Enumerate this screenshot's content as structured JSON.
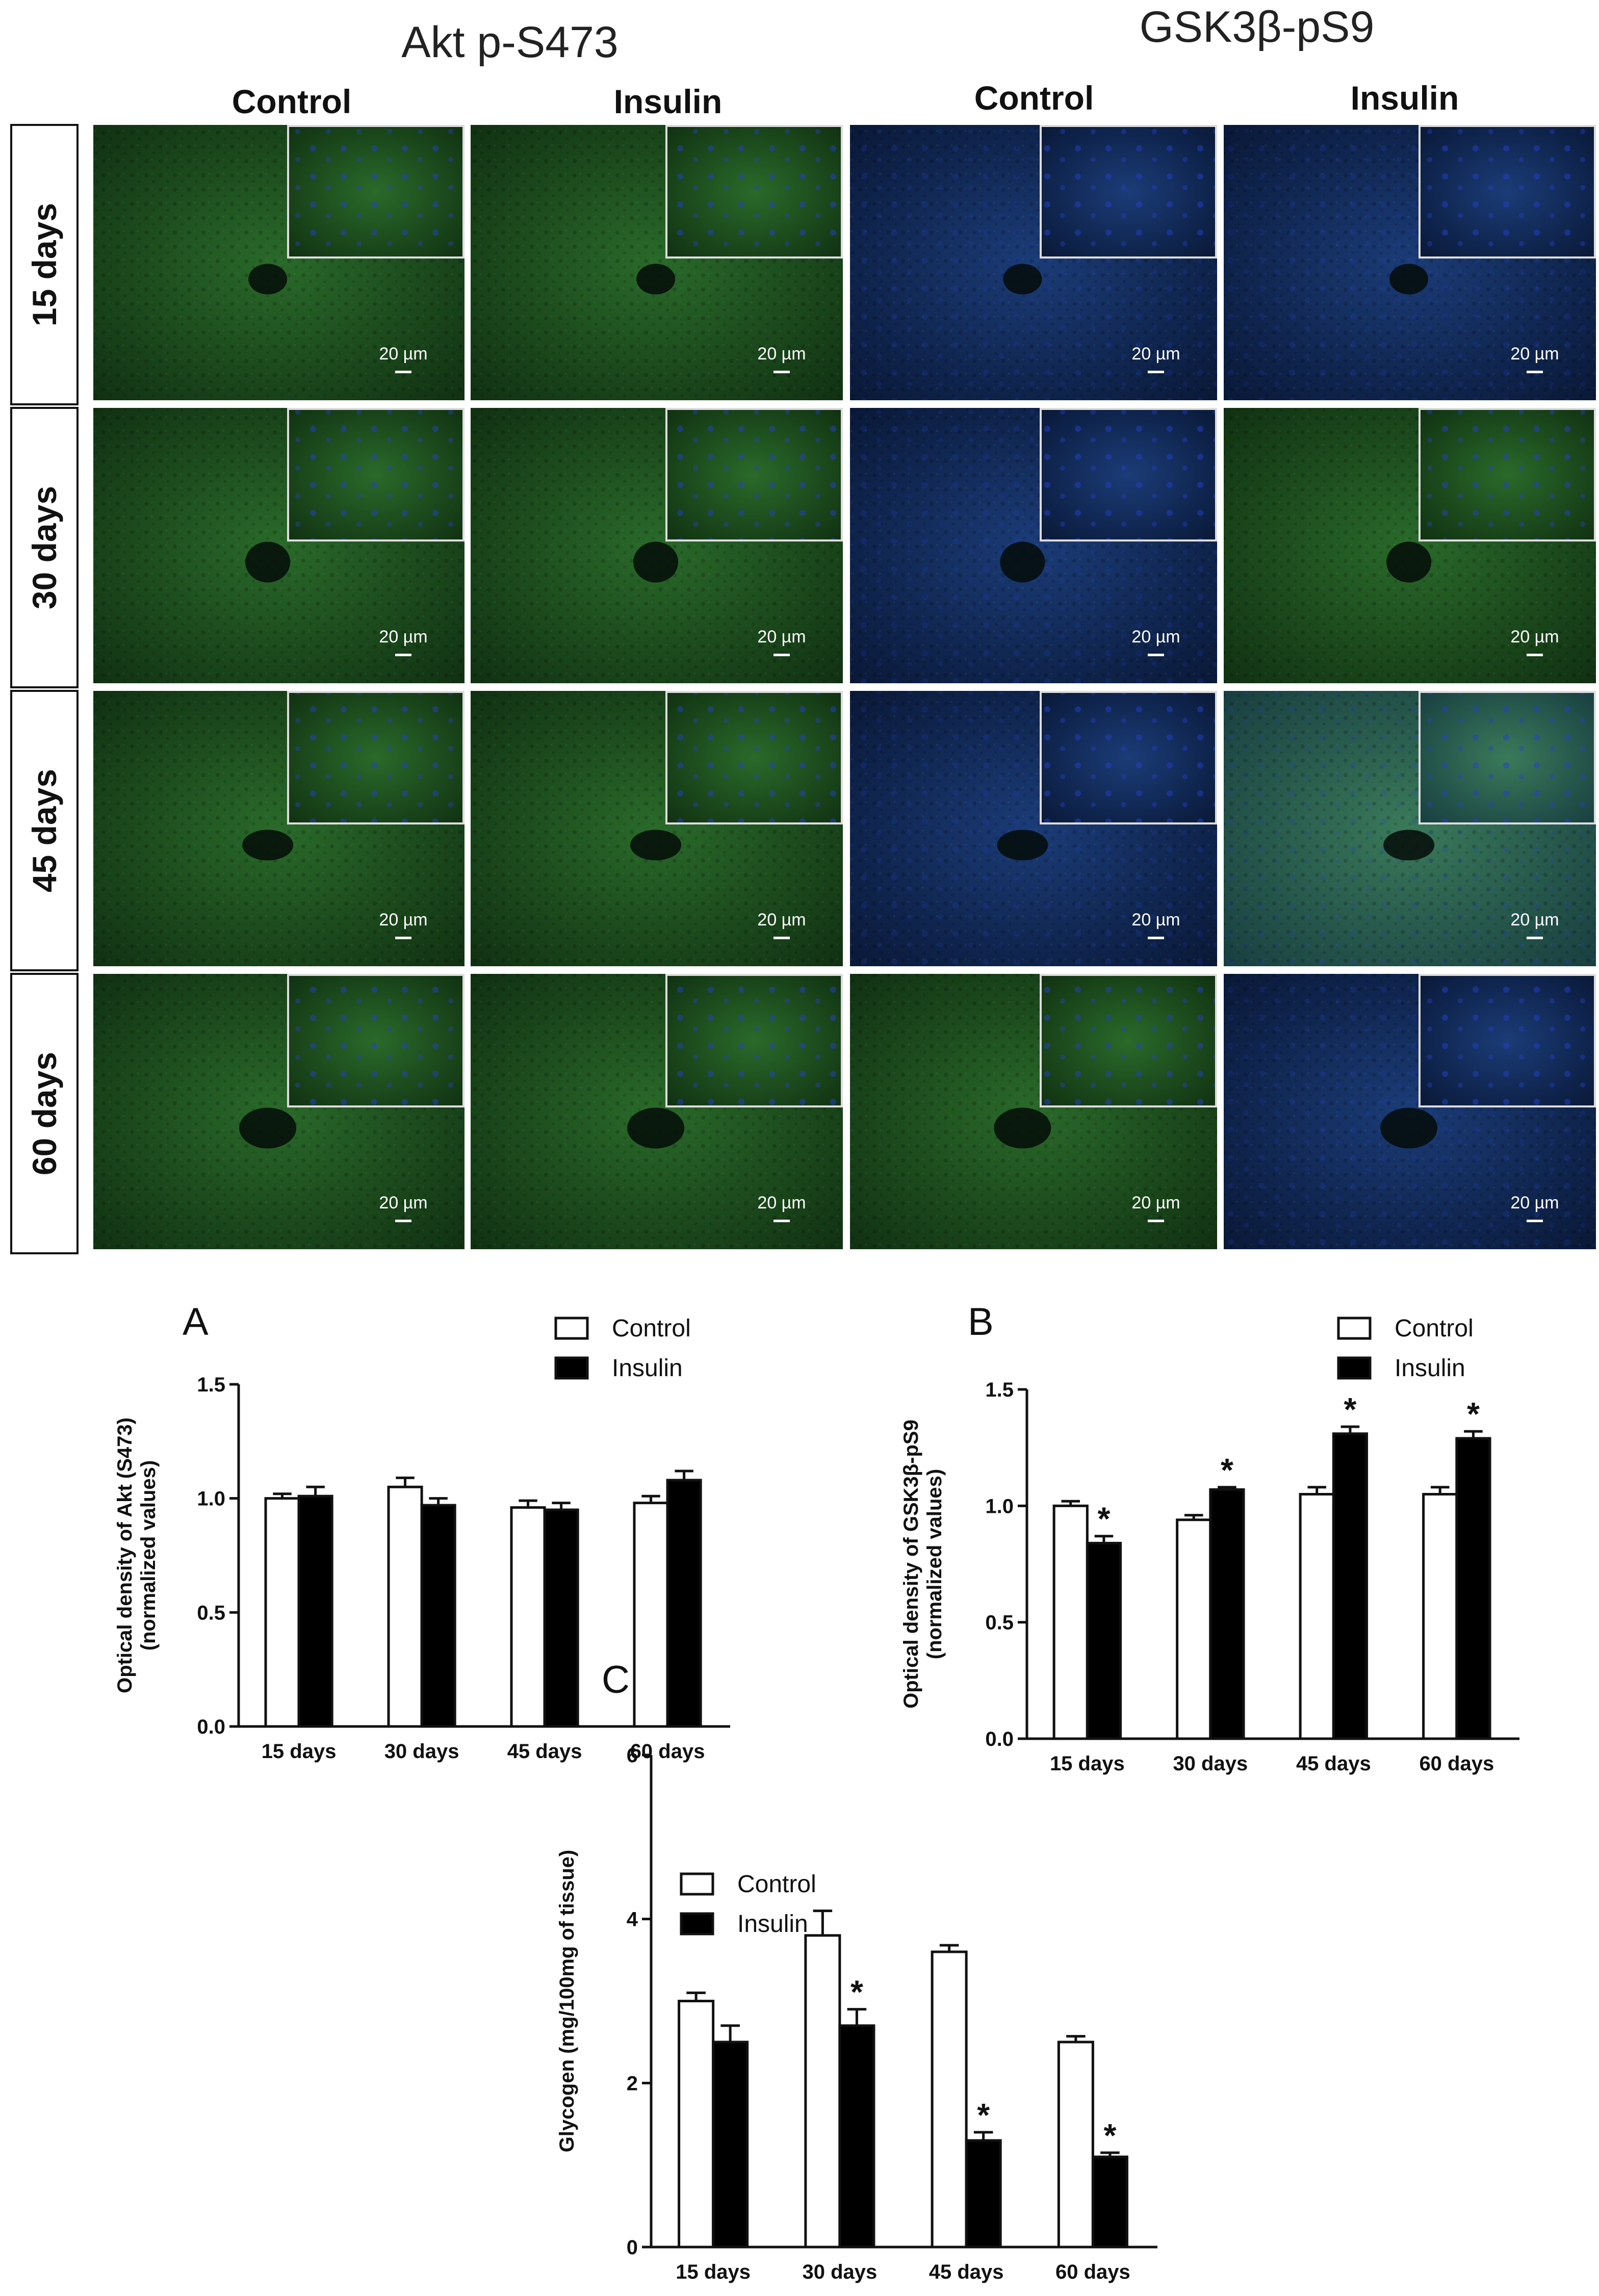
{
  "panel_titles": [
    "Akt p-S473",
    "GSK3β-pS9"
  ],
  "column_labels": [
    "Control",
    "Insulin",
    "Control",
    "Insulin"
  ],
  "row_labels": [
    "15 days",
    "30 days",
    "45 days",
    "60 days"
  ],
  "scale_bar_label": "20 µm",
  "micrograph_colors": {
    "green_stain": "#1c4a1a",
    "blue_stain": "#0e2550",
    "inset_border": "#dddddd"
  },
  "chart_data": [
    {
      "type": "bar",
      "panel_letter": "A",
      "categories": [
        "15 days",
        "30 days",
        "45 days",
        "60 days"
      ],
      "ylabel": "Optical density of Akt (S473)\n(normalized values)",
      "ylim": [
        0,
        1.5
      ],
      "yticks": [
        "0.0",
        "0.5",
        "1.0",
        "1.5"
      ],
      "legend": [
        "Control",
        "Insulin"
      ],
      "legend_position": "top-right",
      "series": [
        {
          "name": "Control",
          "color": "#ffffff",
          "values": [
            1.0,
            1.05,
            0.96,
            0.98
          ],
          "errors": [
            0.02,
            0.04,
            0.03,
            0.03
          ],
          "significant": [
            false,
            false,
            false,
            false
          ]
        },
        {
          "name": "Insulin",
          "color": "#000000",
          "values": [
            1.01,
            0.97,
            0.95,
            1.08
          ],
          "errors": [
            0.04,
            0.03,
            0.03,
            0.04
          ],
          "significant": [
            false,
            false,
            false,
            false
          ]
        }
      ]
    },
    {
      "type": "bar",
      "panel_letter": "B",
      "categories": [
        "15 days",
        "30 days",
        "45 days",
        "60 days"
      ],
      "ylabel": "Optical density of GSK3β-pS9\n(normalized values)",
      "ylim": [
        0,
        1.5
      ],
      "yticks": [
        "0.0",
        "0.5",
        "1.0",
        "1.5"
      ],
      "legend": [
        "Control",
        "Insulin"
      ],
      "legend_position": "top-right",
      "series": [
        {
          "name": "Control",
          "color": "#ffffff",
          "values": [
            1.0,
            0.94,
            1.05,
            1.05
          ],
          "errors": [
            0.02,
            0.02,
            0.03,
            0.03
          ],
          "significant": [
            false,
            false,
            false,
            false
          ]
        },
        {
          "name": "Insulin",
          "color": "#000000",
          "values": [
            0.84,
            1.07,
            1.31,
            1.29
          ],
          "errors": [
            0.03,
            0.01,
            0.03,
            0.03
          ],
          "significant": [
            true,
            true,
            true,
            true
          ]
        }
      ],
      "significance_marker": "*"
    },
    {
      "type": "bar",
      "panel_letter": "C",
      "categories": [
        "15 days",
        "30 days",
        "45 days",
        "60 days"
      ],
      "ylabel": "Glycogen (mg/100mg of tissue)",
      "ylim": [
        0,
        6
      ],
      "yticks": [
        "0",
        "2",
        "4",
        "6"
      ],
      "legend": [
        "Control",
        "Insulin"
      ],
      "legend_position": "top-left",
      "series": [
        {
          "name": "Control",
          "color": "#ffffff",
          "values": [
            3.0,
            3.8,
            3.6,
            2.5
          ],
          "errors": [
            0.1,
            0.3,
            0.08,
            0.07
          ],
          "significant": [
            false,
            false,
            false,
            false
          ]
        },
        {
          "name": "Insulin",
          "color": "#000000",
          "values": [
            2.5,
            2.7,
            1.3,
            1.1
          ],
          "errors": [
            0.2,
            0.2,
            0.1,
            0.05
          ],
          "significant": [
            false,
            true,
            true,
            true
          ]
        }
      ],
      "significance_marker": "*"
    }
  ]
}
